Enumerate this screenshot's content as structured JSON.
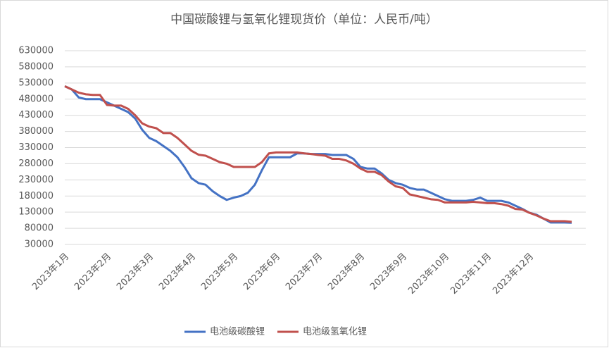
{
  "chart_data": {
    "type": "line",
    "title": "中国碳酸锂与氢氧化锂现货价（单位：人民币/吨）",
    "categories": [
      "2023年1月",
      null,
      null,
      null,
      null,
      null,
      "2023年2月",
      null,
      null,
      null,
      null,
      null,
      "2023年3月",
      null,
      null,
      null,
      null,
      null,
      "2023年4月",
      null,
      null,
      null,
      null,
      null,
      "2023年5月",
      null,
      null,
      null,
      null,
      null,
      "2023年6月",
      null,
      null,
      null,
      null,
      null,
      "2023年7月",
      null,
      null,
      null,
      null,
      null,
      "2023年8月",
      null,
      null,
      null,
      null,
      null,
      "2023年9月",
      null,
      null,
      null,
      null,
      null,
      "2023年10月",
      null,
      null,
      null,
      null,
      null,
      "2023年11月",
      null,
      null,
      null,
      null,
      null,
      "2023年12月",
      null,
      null,
      null,
      null,
      null,
      null
    ],
    "series": [
      {
        "name": "电池级碳酸锂",
        "color": "#4472c4",
        "values": [
          520000,
          510000,
          485000,
          480000,
          480000,
          480000,
          470000,
          460000,
          450000,
          440000,
          420000,
          385000,
          360000,
          350000,
          335000,
          320000,
          300000,
          270000,
          235000,
          220000,
          215000,
          195000,
          180000,
          168000,
          175000,
          180000,
          190000,
          215000,
          260000,
          300000,
          300000,
          300000,
          300000,
          312000,
          312000,
          310000,
          310000,
          310000,
          307000,
          307000,
          307000,
          295000,
          270000,
          265000,
          265000,
          250000,
          230000,
          220000,
          215000,
          205000,
          200000,
          200000,
          190000,
          180000,
          170000,
          165000,
          165000,
          165000,
          168000,
          175000,
          165000,
          165000,
          165000,
          160000,
          150000,
          140000,
          128000,
          122000,
          110000,
          98000,
          98000,
          98000,
          97000
        ]
      },
      {
        "name": "电池级氢氧化锂",
        "color": "#c0504d",
        "values": [
          520000,
          510000,
          500000,
          495000,
          493000,
          493000,
          462000,
          460000,
          460000,
          450000,
          430000,
          405000,
          395000,
          390000,
          375000,
          375000,
          360000,
          340000,
          320000,
          308000,
          305000,
          295000,
          285000,
          280000,
          270000,
          270000,
          270000,
          270000,
          285000,
          312000,
          315000,
          315000,
          315000,
          315000,
          312000,
          310000,
          307000,
          305000,
          295000,
          295000,
          290000,
          280000,
          265000,
          255000,
          255000,
          245000,
          225000,
          210000,
          205000,
          185000,
          180000,
          175000,
          170000,
          168000,
          160000,
          160000,
          160000,
          160000,
          162000,
          160000,
          158000,
          158000,
          155000,
          150000,
          140000,
          138000,
          128000,
          120000,
          110000,
          102000,
          102000,
          102000,
          100000
        ]
      }
    ],
    "ylim": [
      30000,
      630000
    ],
    "yticks": [
      30000,
      80000,
      130000,
      180000,
      230000,
      280000,
      330000,
      380000,
      430000,
      480000,
      530000,
      580000,
      630000
    ],
    "grid": true,
    "legend": "bottom"
  }
}
